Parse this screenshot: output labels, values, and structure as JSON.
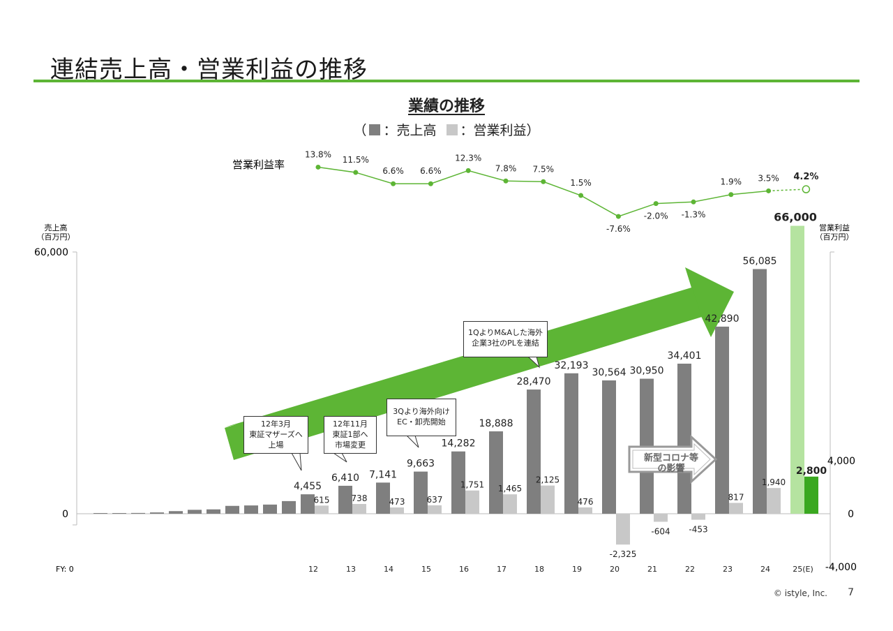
{
  "page": {
    "title": "連結売上高・営業利益の推移",
    "copyright": "© istyle, Inc.",
    "page_number": "7"
  },
  "colors": {
    "accent": "#5db535",
    "sales_bar": "#7f7f7f",
    "profit_bar": "#c8c8c8",
    "forecast_sales": "#b5e3a0",
    "forecast_profit": "#3aa820",
    "margin_line": "#5db535"
  },
  "chart_data": {
    "type": "bar",
    "title": "業績の推移",
    "legend": {
      "open": "（",
      "sales_label": "：売上高",
      "profit_label": "：営業利益）"
    },
    "left_axis": {
      "label_line1": "売上高",
      "label_line2": "（百万円）",
      "ticks": [
        "60,000",
        "0"
      ],
      "range": [
        0,
        60000
      ]
    },
    "right_axis": {
      "label_line1": "営業利益",
      "label_line2": "（百万円）",
      "ticks": [
        "4,000",
        "0",
        "-4,000"
      ],
      "range": [
        -4000,
        4000
      ]
    },
    "x_first_label": "FY: 0",
    "early_years_sales": [
      60,
      110,
      180,
      300,
      600,
      900,
      1000,
      1800,
      1900,
      2100,
      2900,
      3400
    ],
    "categories": [
      "12",
      "13",
      "14",
      "15",
      "16",
      "17",
      "18",
      "19",
      "20",
      "21",
      "22",
      "23",
      "24",
      "25(E)"
    ],
    "series": [
      {
        "name": "売上高",
        "values": [
          4455,
          6410,
          7141,
          9663,
          14282,
          18888,
          28470,
          32193,
          30564,
          30950,
          34401,
          42890,
          56085,
          66000
        ],
        "labels": [
          "4,455",
          "6,410",
          "7,141",
          "9,663",
          "14,282",
          "18,888",
          "28,470",
          "32,193",
          "30,564",
          "30,950",
          "34,401",
          "42,890",
          "56,085",
          "66,000"
        ]
      },
      {
        "name": "営業利益",
        "values": [
          615,
          738,
          473,
          637,
          1751,
          1465,
          2125,
          476,
          -2325,
          -604,
          -453,
          817,
          1940,
          2800
        ],
        "labels": [
          "615",
          "738",
          "473",
          "637",
          "1,751",
          "1,465",
          "2,125",
          "476",
          "-2,325",
          "-604",
          "-453",
          "817",
          "1,940",
          "2,800"
        ]
      }
    ],
    "margin": {
      "label": "営業利益率",
      "values": [
        13.8,
        11.5,
        6.6,
        6.6,
        12.3,
        7.8,
        7.5,
        1.5,
        -7.6,
        -2.0,
        -1.3,
        1.9,
        3.5,
        4.2
      ],
      "labels": [
        "13.8%",
        "11.5%",
        "6.6%",
        "6.6%",
        "12.3%",
        "7.8%",
        "7.5%",
        "1.5%",
        "-7.6%",
        "-2.0%",
        "-1.3%",
        "1.9%",
        "3.5%",
        "4.2%"
      ]
    },
    "annotations": {
      "listing_mothers": [
        "12年3月",
        "東証マザーズへ",
        "上場"
      ],
      "listing_first": [
        "12年11月",
        "東証1部へ",
        "市場変更"
      ],
      "overseas": [
        "3Qより海外向け",
        "EC・卸売開始"
      ],
      "ma": [
        "1QよりM&Aした海外",
        "企業3社のPLを連結"
      ],
      "covid": [
        "新型コロナ等",
        "の影響"
      ]
    }
  }
}
